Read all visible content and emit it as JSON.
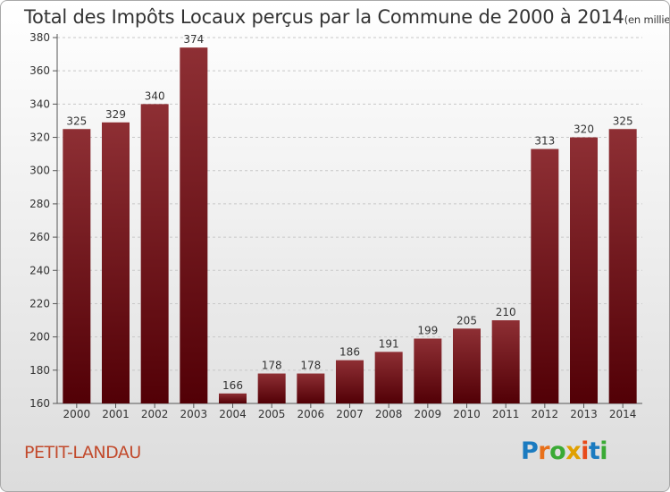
{
  "title": "Total des Impôts Locaux perçus par la Commune de 2000 à 2014",
  "title_unit": "(en milliers d'€)",
  "commune": "PETIT-LANDAU",
  "logo": {
    "letters": [
      "P",
      "r",
      "o",
      "x",
      "i",
      "t",
      "i"
    ],
    "colors": [
      "#1b7bc0",
      "#e8701a",
      "#3aaa35",
      "#e0a000",
      "#e84a1a",
      "#1b7bc0",
      "#3aaa35"
    ]
  },
  "chart_data": {
    "type": "bar",
    "categories": [
      "2000",
      "2001",
      "2002",
      "2003",
      "2004",
      "2005",
      "2006",
      "2007",
      "2008",
      "2009",
      "2010",
      "2011",
      "2012",
      "2013",
      "2014"
    ],
    "values": [
      325,
      329,
      340,
      374,
      166,
      178,
      178,
      186,
      191,
      199,
      205,
      210,
      313,
      320,
      325
    ],
    "ylim": [
      160,
      380
    ],
    "yticks": [
      160,
      180,
      200,
      220,
      240,
      260,
      280,
      300,
      320,
      340,
      360,
      380
    ],
    "grid": true,
    "bar_color": "#7a1a1f"
  }
}
